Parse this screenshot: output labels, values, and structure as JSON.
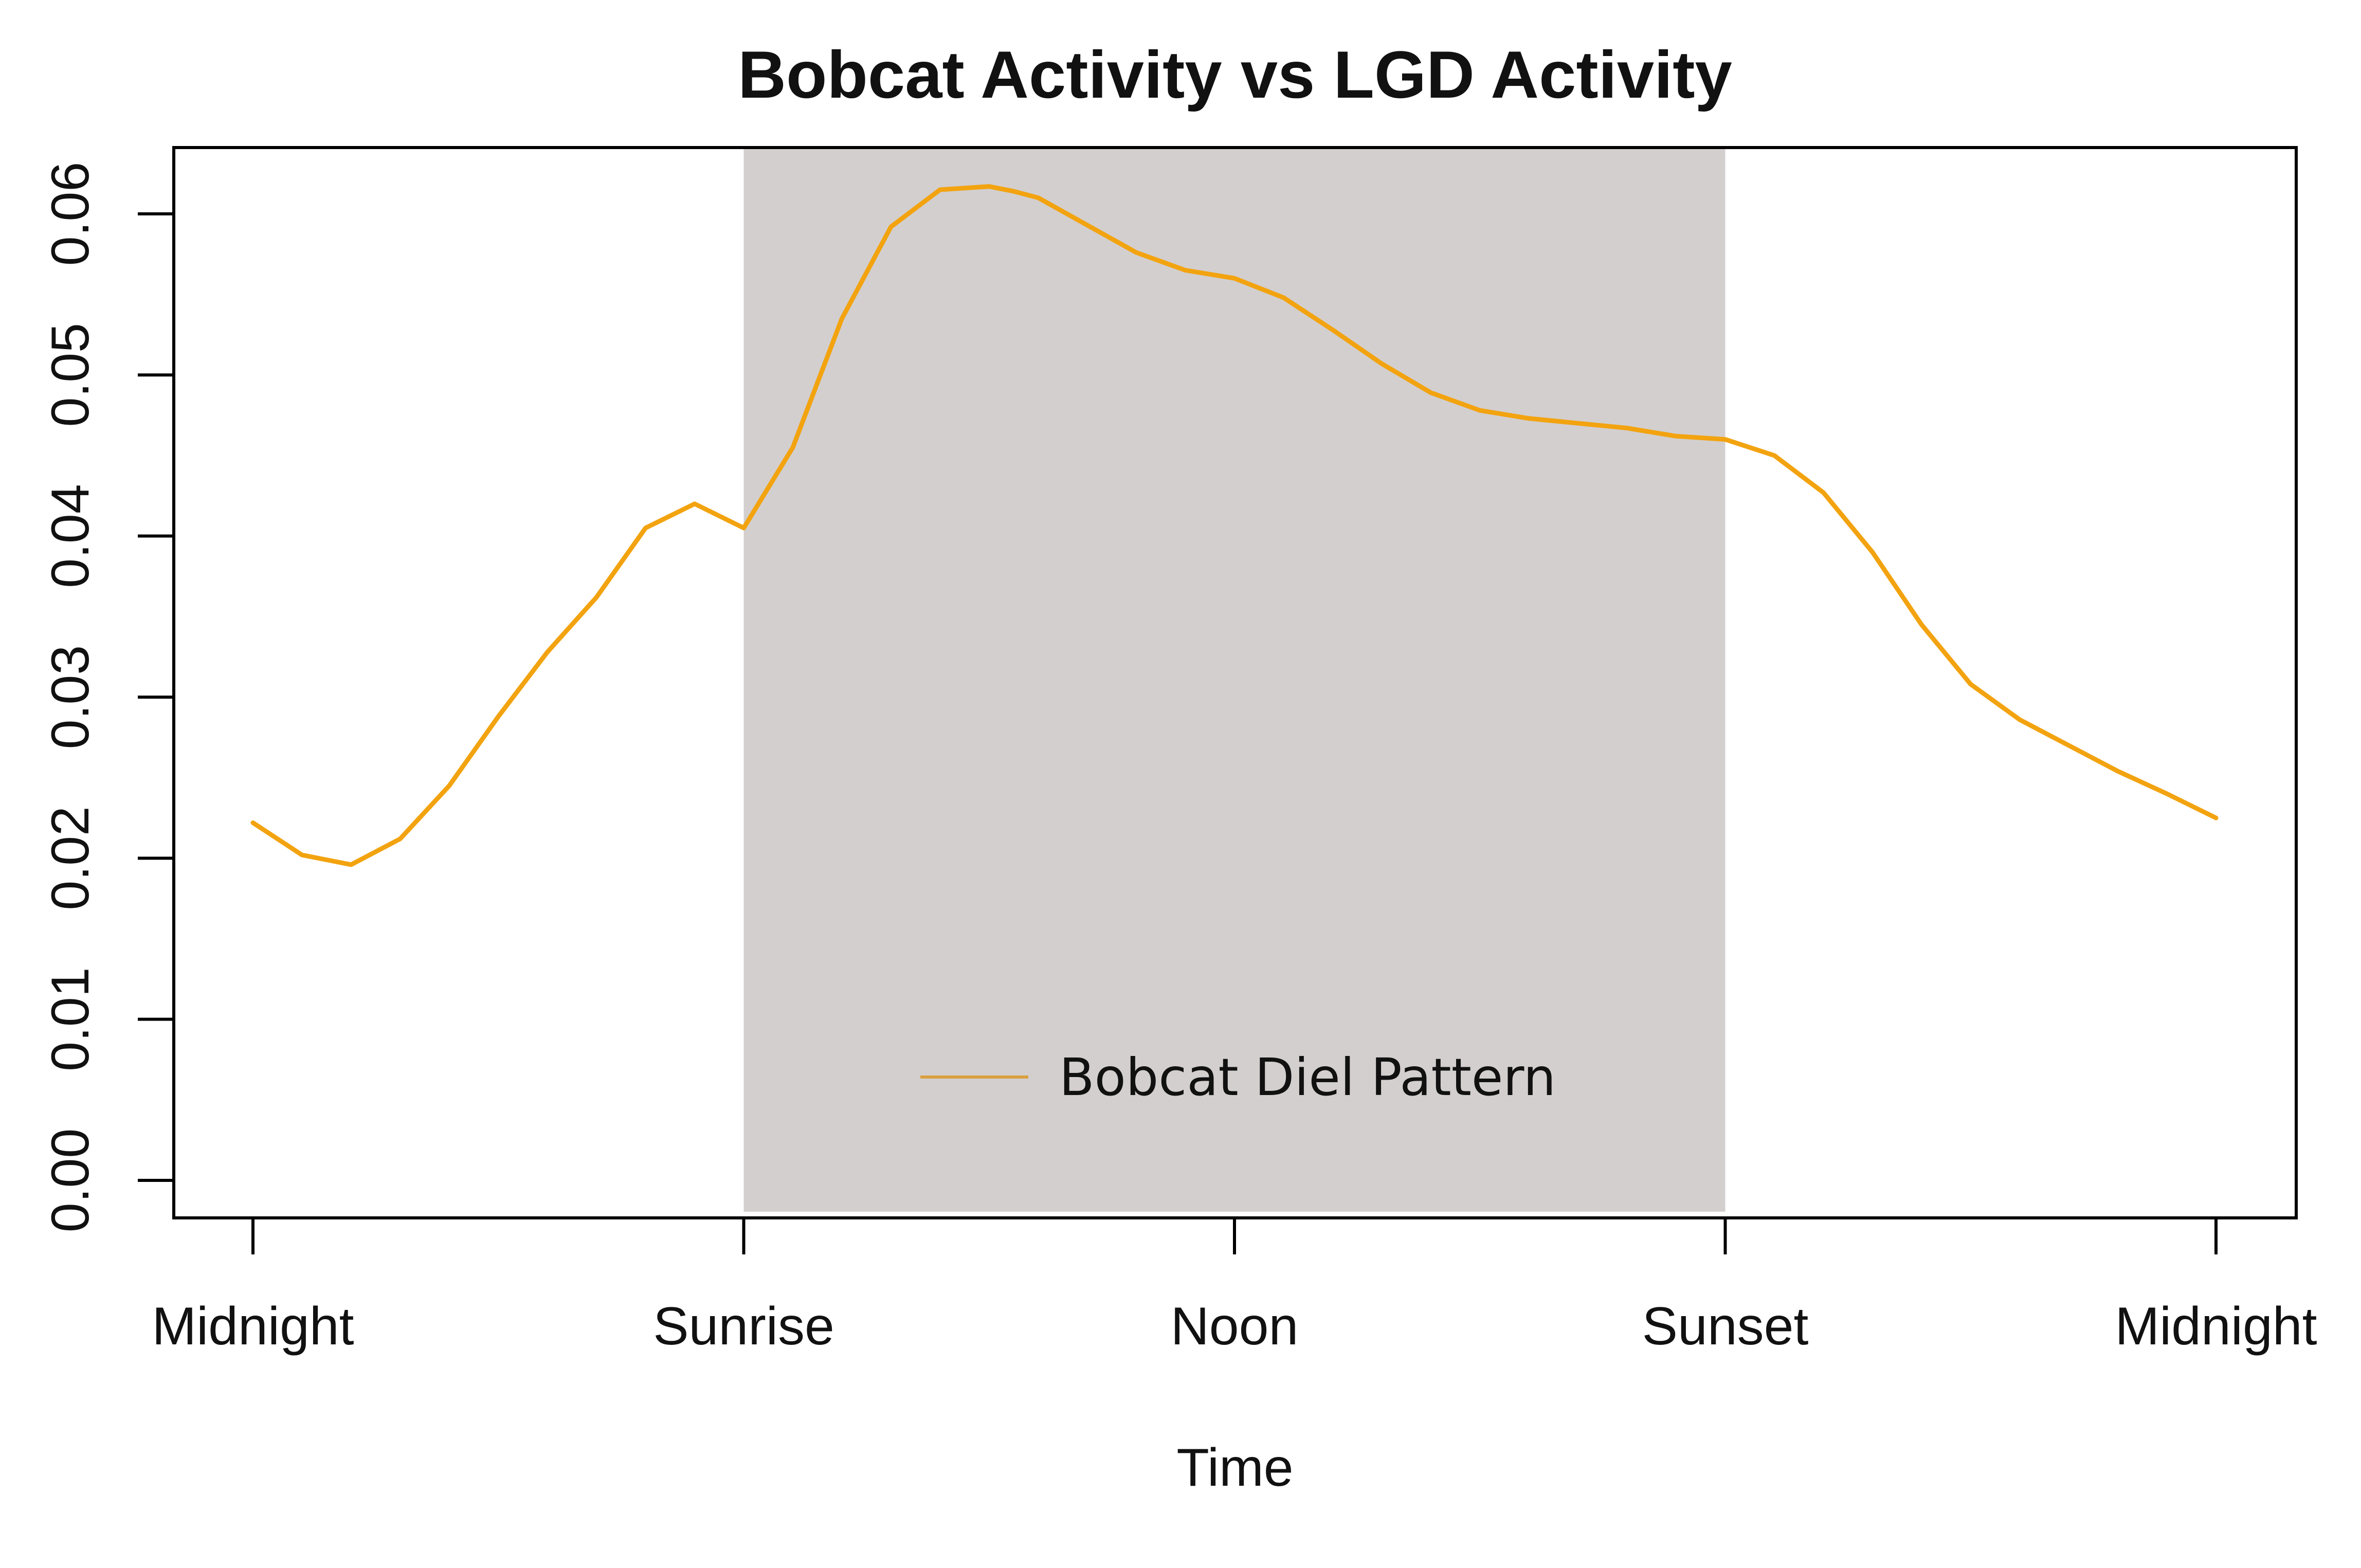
{
  "chart_data": {
    "type": "line",
    "title": "Bobcat Activity vs LGD Activity",
    "xlabel": "Time",
    "ylabel": "",
    "x_tick_labels": [
      "Midnight",
      "Sunrise",
      "Noon",
      "Sunset",
      "Midnight"
    ],
    "x_tick_positions": [
      0,
      1,
      2,
      3,
      4
    ],
    "xlim": [
      0,
      4
    ],
    "y_ticks": [
      "0.00",
      "0.01",
      "0.02",
      "0.03",
      "0.04",
      "0.05",
      "0.06"
    ],
    "ylim": [
      0,
      0.06
    ],
    "grid": false,
    "day_shading": {
      "from": 1,
      "to": 3,
      "color": "#d3cfce"
    },
    "legend": {
      "position": "bottom-center",
      "inside_plot": true
    },
    "series": [
      {
        "name": "Bobcat Diel Pattern",
        "color": "#f2a30f",
        "legend_color": "#d9a03f",
        "x": [
          0.0,
          0.1,
          0.2,
          0.3,
          0.4,
          0.5,
          0.6,
          0.7,
          0.8,
          0.9,
          1.0,
          1.1,
          1.2,
          1.3,
          1.4,
          1.5,
          1.55,
          1.6,
          1.7,
          1.8,
          1.9,
          2.0,
          2.1,
          2.2,
          2.3,
          2.4,
          2.5,
          2.6,
          2.7,
          2.8,
          2.9,
          3.0,
          3.1,
          3.2,
          3.3,
          3.4,
          3.5,
          3.6,
          3.7,
          3.8,
          3.9,
          4.0
        ],
        "y": [
          0.0222,
          0.0202,
          0.0196,
          0.0212,
          0.0245,
          0.0288,
          0.0328,
          0.0362,
          0.0405,
          0.042,
          0.0405,
          0.0455,
          0.0535,
          0.0592,
          0.0615,
          0.0617,
          0.0614,
          0.061,
          0.0593,
          0.0576,
          0.0565,
          0.056,
          0.0548,
          0.0528,
          0.0507,
          0.0489,
          0.0478,
          0.0473,
          0.047,
          0.0467,
          0.0462,
          0.046,
          0.045,
          0.0427,
          0.039,
          0.0345,
          0.0308,
          0.0286,
          0.027,
          0.0254,
          0.024,
          0.0225
        ]
      }
    ]
  }
}
